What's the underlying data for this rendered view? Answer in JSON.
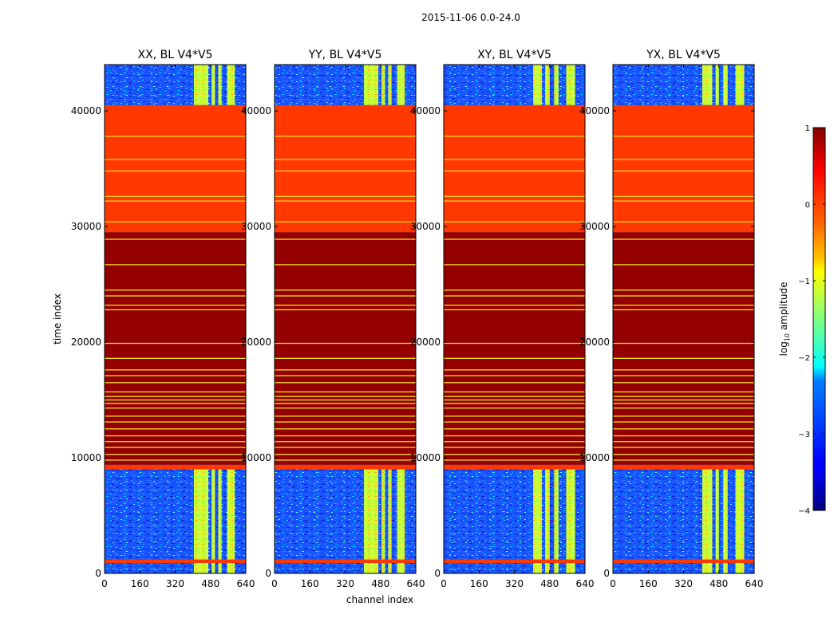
{
  "suptitle": "2015-11-06 0.0-24.0",
  "chart_data": {
    "type": "heatmap",
    "title": "2015-11-06 0.0-24.0",
    "xlabel": "channel index",
    "ylabel": "time index",
    "xlim": [
      0,
      640
    ],
    "ylim": [
      0,
      44000
    ],
    "xticks": [
      "0",
      "160",
      "320",
      "480",
      "640"
    ],
    "yticks": [
      "0",
      "10000",
      "20000",
      "30000",
      "40000"
    ],
    "xtick_values": [
      0,
      160,
      320,
      480,
      640
    ],
    "ytick_values": [
      0,
      10000,
      20000,
      30000,
      40000
    ],
    "panels": [
      {
        "title": "XX, BL V4*V5",
        "bright_channels": [
          [
            405,
            470
          ],
          [
            485,
            500
          ],
          [
            515,
            530
          ],
          [
            555,
            590
          ]
        ]
      },
      {
        "title": "YY, BL V4*V5",
        "bright_channels": [
          [
            405,
            470
          ],
          [
            485,
            500
          ],
          [
            515,
            530
          ],
          [
            555,
            590
          ]
        ]
      },
      {
        "title": "XY, BL V4*V5",
        "bright_channels": [
          [
            405,
            445
          ],
          [
            460,
            480
          ],
          [
            500,
            520
          ],
          [
            555,
            595
          ]
        ]
      },
      {
        "title": "YX, BL V4*V5",
        "bright_channels": [
          [
            405,
            450
          ],
          [
            465,
            480
          ],
          [
            500,
            520
          ],
          [
            555,
            595
          ]
        ]
      }
    ],
    "time_bands": [
      {
        "from": 0,
        "to": 900,
        "level": -2.6
      },
      {
        "from": 900,
        "to": 1200,
        "level": 0.1
      },
      {
        "from": 1200,
        "to": 9000,
        "level": -2.6
      },
      {
        "from": 9000,
        "to": 9400,
        "level": 0.1
      },
      {
        "from": 9400,
        "to": 29500,
        "level": 0.9
      },
      {
        "from": 29500,
        "to": 40500,
        "level": 0.1
      },
      {
        "from": 40500,
        "to": 44000,
        "level": -2.6
      }
    ],
    "flag_rows": {
      "dark_segment": [
        9800,
        10300,
        10900,
        11400,
        11900,
        12500,
        13100,
        13600,
        14300,
        14700,
        15000,
        15300,
        15700,
        16500,
        17100,
        17600,
        18600,
        19900,
        22800,
        23200,
        24000,
        24500,
        26700,
        28900
      ],
      "orange_segment": [
        30400,
        32200,
        32600,
        34800,
        35800,
        37800
      ]
    },
    "colorbar": {
      "label": "log10 amplitude",
      "label_base": "log",
      "label_sub": "10",
      "label_rest": " amplitude",
      "range": [
        -4,
        1
      ],
      "ticks": [
        1,
        0,
        -1,
        -2,
        -3,
        -4
      ],
      "tick_labels": [
        "1",
        "0",
        "−1",
        "−2",
        "−3",
        "−4"
      ],
      "colormap": "jet"
    }
  }
}
